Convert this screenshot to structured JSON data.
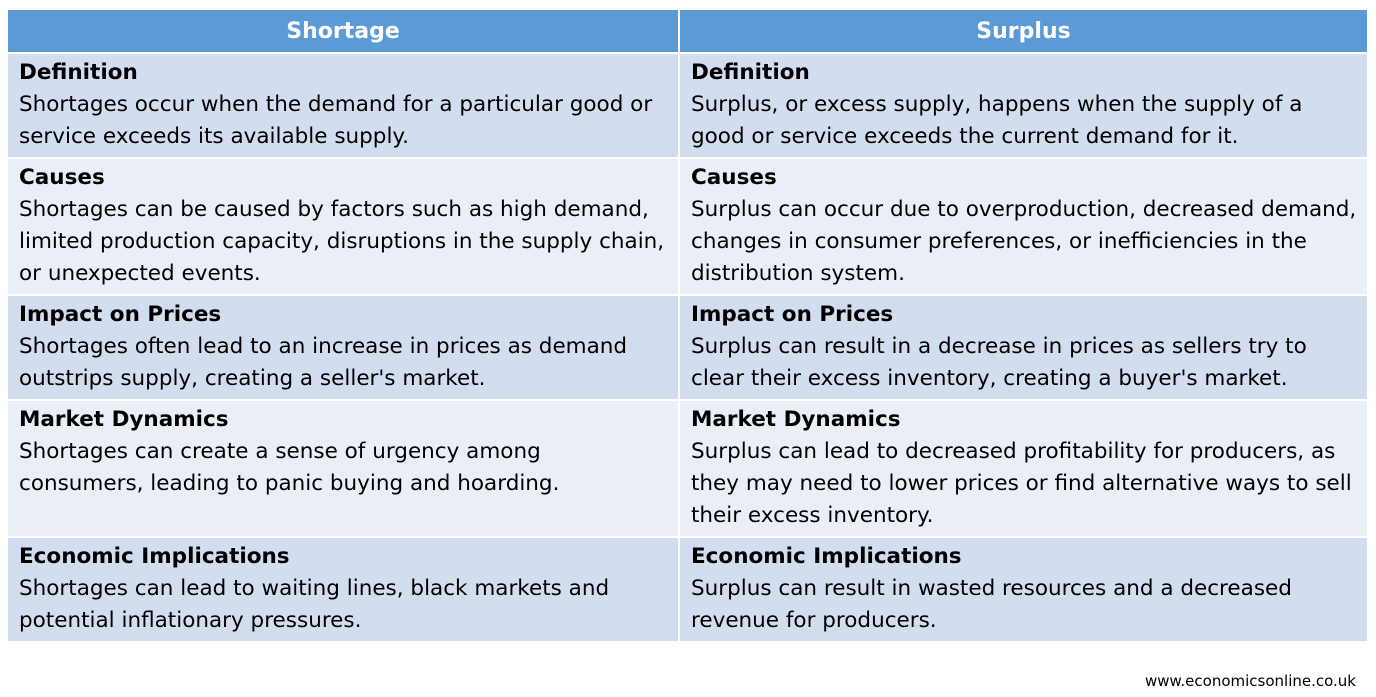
{
  "columns": [
    "Shortage",
    "Surplus"
  ],
  "rows": [
    {
      "shortage_heading": "Definition",
      "shortage_text": "Shortages occur when the demand for a particular good or service exceeds its available supply.",
      "surplus_heading": "Definition",
      "surplus_text": "Surplus, or excess supply, happens when the supply of a good or service exceeds the current demand for it."
    },
    {
      "shortage_heading": "Causes",
      "shortage_text": "Shortages can be caused by factors such as high demand, limited production capacity, disruptions in the supply chain, or unexpected events.",
      "surplus_heading": "Causes",
      "surplus_text": "Surplus can occur due to overproduction, decreased demand, changes in consumer preferences, or inefficiencies in the distribution system."
    },
    {
      "shortage_heading": "Impact on Prices",
      "shortage_text": "Shortages often lead to an increase in prices as demand outstrips supply, creating a seller's market.",
      "surplus_heading": "Impact on Prices",
      "surplus_text": "Surplus can result in a decrease in prices as sellers try to clear their excess inventory, creating a buyer's market."
    },
    {
      "shortage_heading": "Market Dynamics",
      "shortage_text": "Shortages can create a sense of urgency among consumers, leading to panic buying and hoarding.",
      "surplus_heading": "Market Dynamics",
      "surplus_text": "Surplus can lead to decreased profitability for producers, as they may need to lower prices or find alternative ways to sell their excess inventory."
    },
    {
      "shortage_heading": "Economic Implications",
      "shortage_text": "Shortages can lead to waiting lines, black markets and potential inflationary pressures.",
      "surplus_heading": "Economic Implications",
      "surplus_text": "Surplus can result in wasted resources and a decreased revenue for producers."
    }
  ],
  "footer": "www.economicsonline.co.uk",
  "colors": {
    "header_bg": "#5b9bd5",
    "row_dark": "#d2deef",
    "row_light": "#eaeff7"
  }
}
